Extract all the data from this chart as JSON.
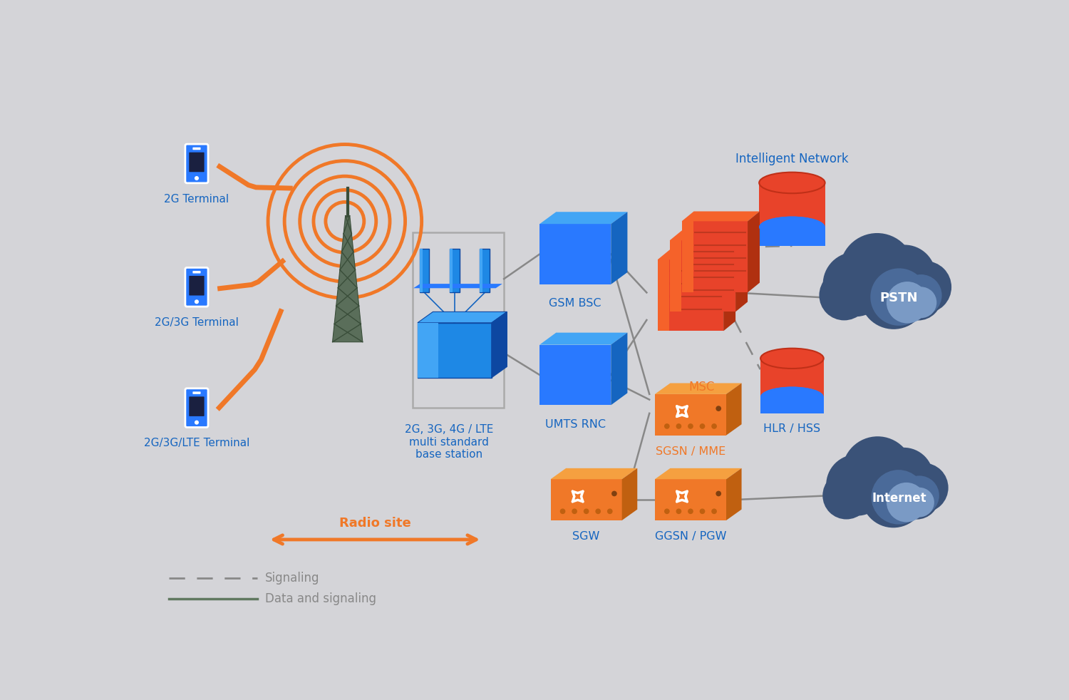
{
  "bg_color": "#d4d4d8",
  "orange": "#F07828",
  "orange_router": "#F07828",
  "blue_face": "#2979FF",
  "blue_top": "#42A5F5",
  "blue_side": "#1565C0",
  "blue_bs_face": "#1E88E5",
  "blue_bs_top": "#42A5F5",
  "blue_bs_side": "#0D47A1",
  "red_face": "#E8432A",
  "red_top": "#F5622A",
  "red_side": "#B03010",
  "gray_line": "#888888",
  "gray_dark": "#606060",
  "cloud_dark": "#3a5278",
  "cloud_mid": "#4a6a99",
  "cloud_light": "#7a9ac5",
  "text_blue": "#1565C0",
  "text_orange": "#F07828",
  "text_gray": "#888888",
  "labels": {
    "2g_terminal": "2G Terminal",
    "2g3g_terminal": "2G/3G Terminal",
    "2g3glte_terminal": "2G/3G/LTE Terminal",
    "base_station": "2G, 3G, 4G / LTE\nmulti standard\nbase station",
    "gsm_bsc": "GSM BSC",
    "umts_rnc": "UMTS RNC",
    "msc": "MSC",
    "sgsn_mme": "SGSN / MME",
    "sgw": "SGW",
    "ggsn_pgw": "GGSN / PGW",
    "hlr_hss": "HLR / HSS",
    "intelligent_network": "Intelligent Network",
    "pstn": "PSTN",
    "internet": "Internet",
    "radio_site": "Radio site",
    "signaling": "Signaling",
    "data_signaling": "Data and signaling"
  }
}
